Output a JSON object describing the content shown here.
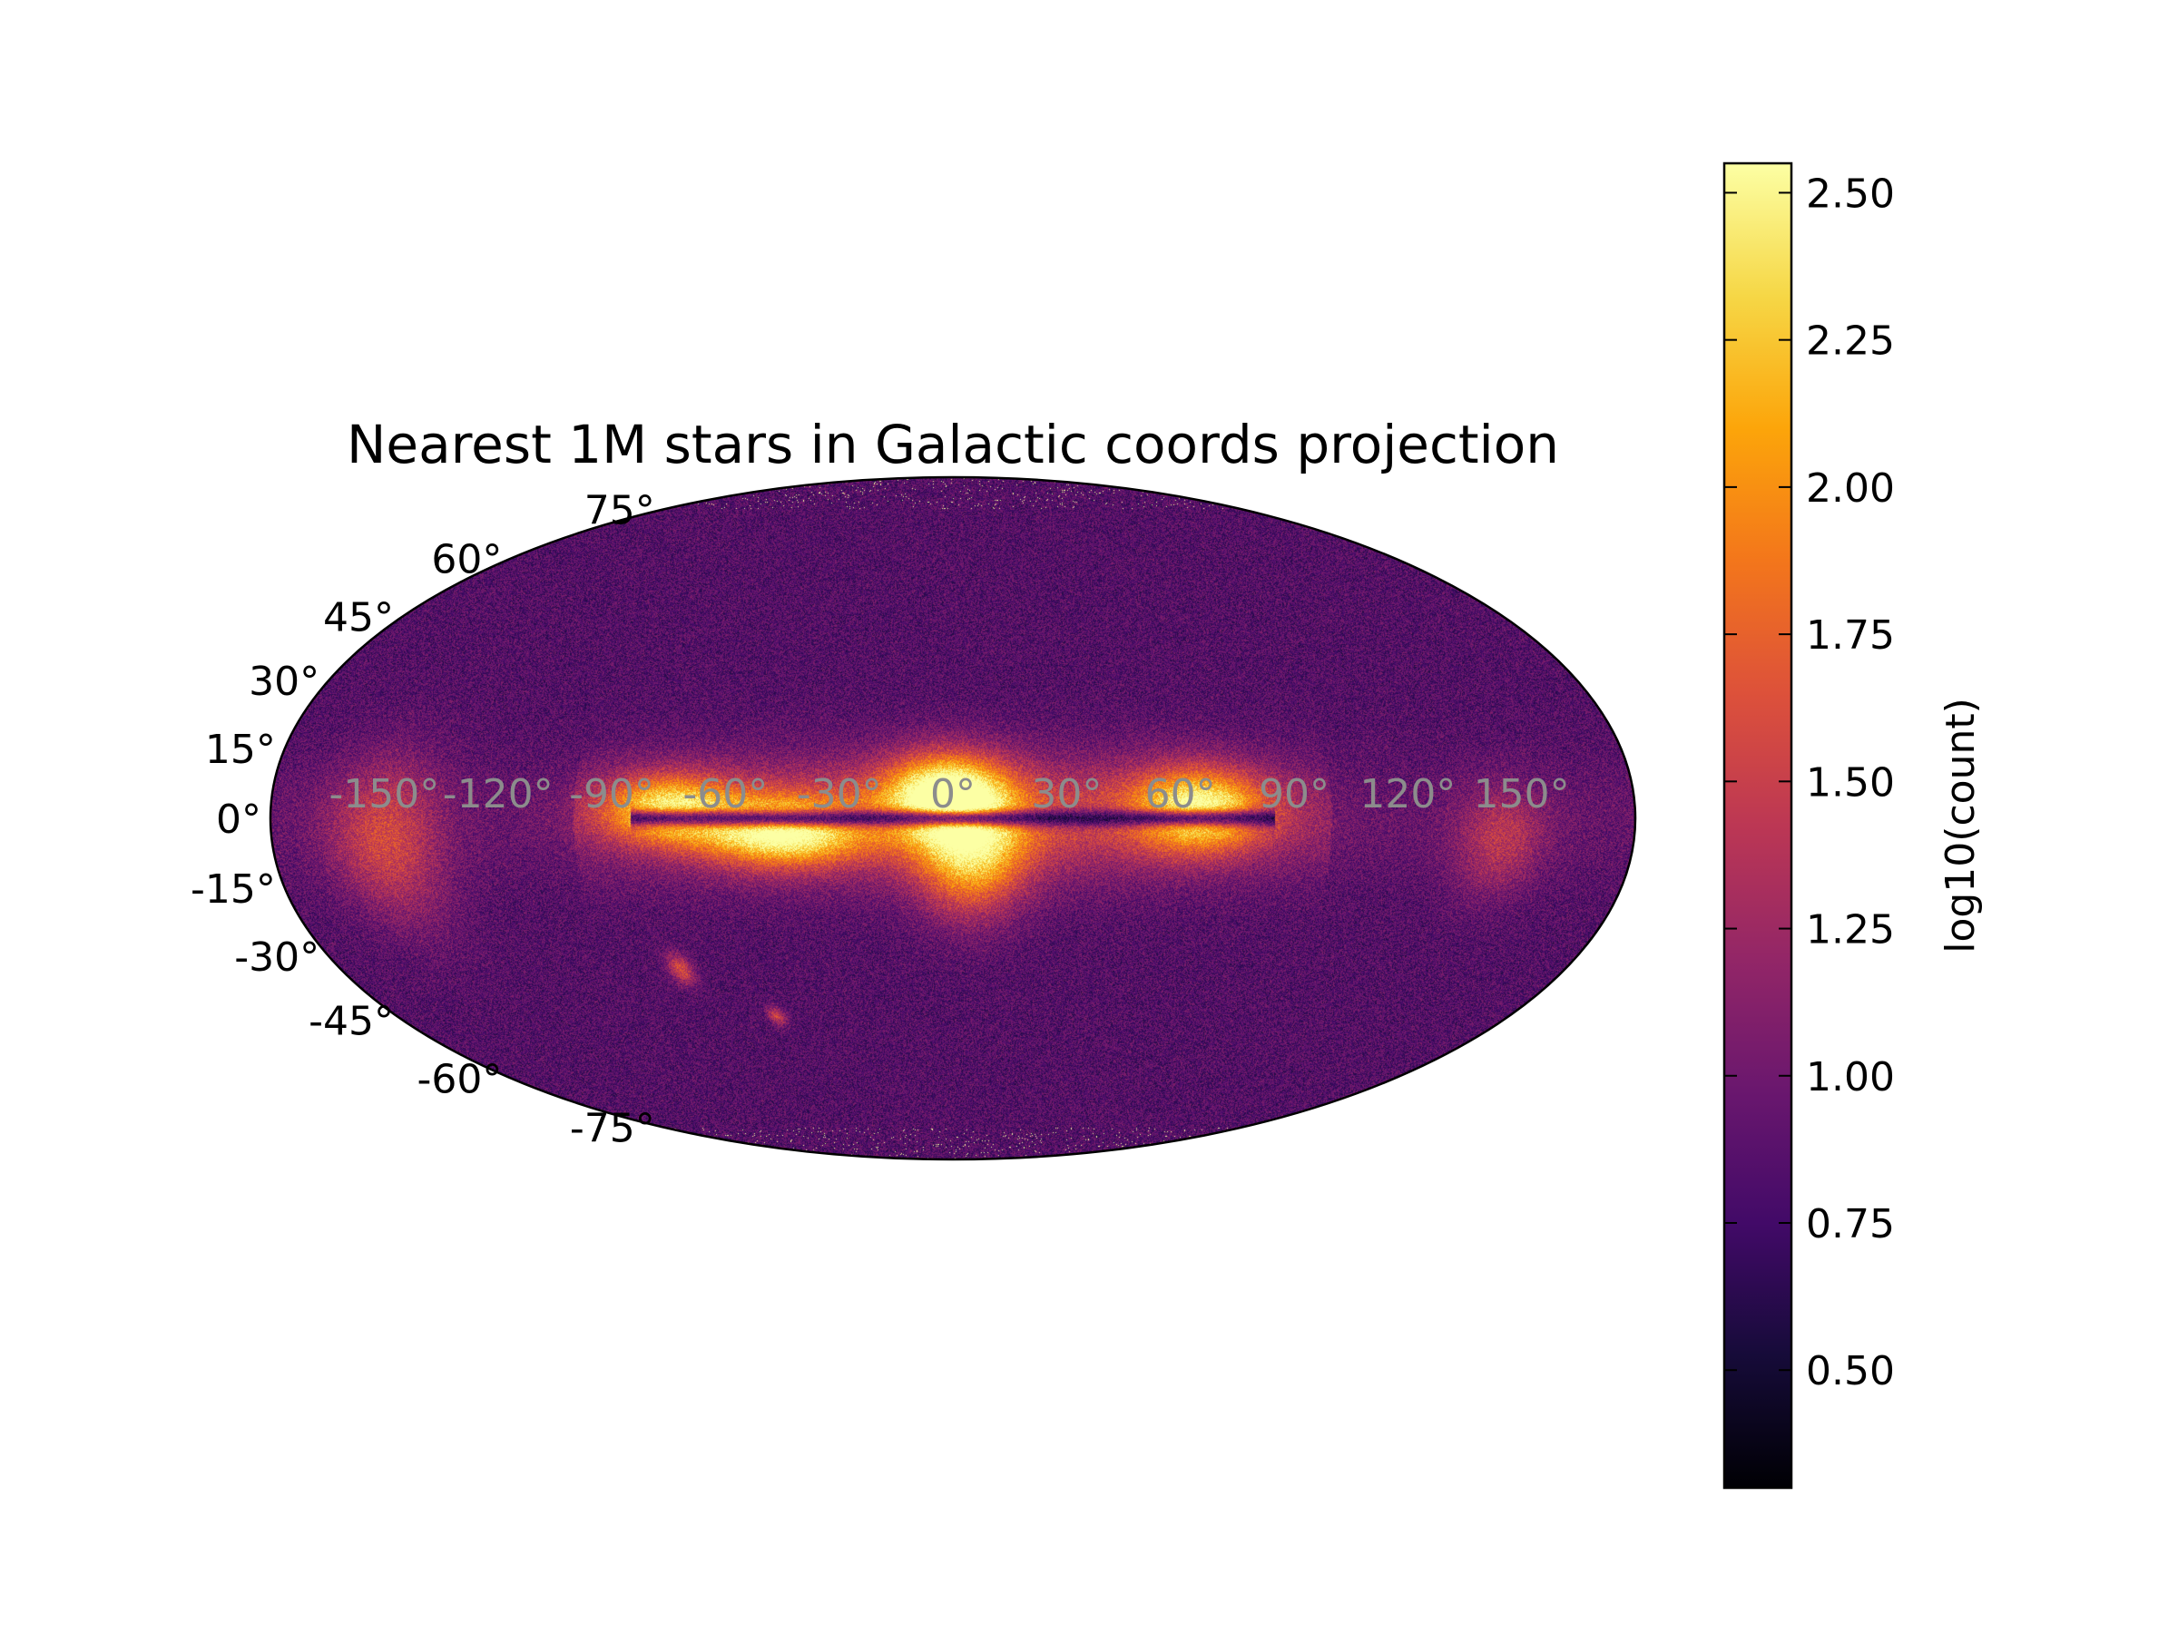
{
  "chart_data": {
    "type": "heatmap",
    "projection": "mollweide",
    "title": "Nearest 1M stars in Galactic coords projection",
    "colormap": "inferno",
    "colorbar": {
      "label": "log10(count)",
      "range": [
        0.3,
        2.55
      ],
      "ticks": [
        0.5,
        0.75,
        1.0,
        1.25,
        1.5,
        1.75,
        2.0,
        2.25,
        2.5
      ],
      "tick_labels": [
        "0.50",
        "0.75",
        "1.00",
        "1.25",
        "1.50",
        "1.75",
        "2.00",
        "2.25",
        "2.50"
      ]
    },
    "lat_ticks": [
      75,
      60,
      45,
      30,
      15,
      0,
      -15,
      -30,
      -45,
      -60,
      -75
    ],
    "lat_tick_labels": [
      "75°",
      "60°",
      "45°",
      "30°",
      "15°",
      "0°",
      "-15°",
      "-30°",
      "-45°",
      "-60°",
      "-75°"
    ],
    "lon_ticks": [
      -150,
      -120,
      -90,
      -60,
      -30,
      0,
      30,
      60,
      90,
      120,
      150
    ],
    "lon_tick_labels": [
      "-150°",
      "-120°",
      "-90°",
      "-60°",
      "-30°",
      "0°",
      "30°",
      "60°",
      "90°",
      "120°",
      "150°"
    ],
    "background_level": 0.85,
    "features": [
      {
        "name": "galactic-plane",
        "lon": [
          -150,
          150
        ],
        "lat_width": 9,
        "value": 1.7
      },
      {
        "name": "bulge-north",
        "lon": -2,
        "lat": 5,
        "value": 2.35
      },
      {
        "name": "band-west-south",
        "lon": -45,
        "lat": -3,
        "value": 2.3
      },
      {
        "name": "band-east",
        "lon": 65,
        "lat": 2,
        "value": 2.3
      },
      {
        "name": "band-west",
        "lon": -75,
        "lat": 2,
        "value": 2.15
      },
      {
        "name": "ophiuchus-spur",
        "lon": 5,
        "lat": -8,
        "value": 2.0
      },
      {
        "name": "orion-region",
        "lon": -150,
        "lat": -5,
        "value": 1.5
      },
      {
        "name": "outer-arc-east",
        "lon": 145,
        "lat": -5,
        "value": 1.35
      },
      {
        "name": "dust-lane",
        "lon": [
          -85,
          85
        ],
        "lat": 0,
        "value": 0.35
      },
      {
        "name": "lmc",
        "lon": -80,
        "lat": -33,
        "value": 1.6
      },
      {
        "name": "smc",
        "lon": -57,
        "lat": -44,
        "value": 1.5
      }
    ]
  }
}
